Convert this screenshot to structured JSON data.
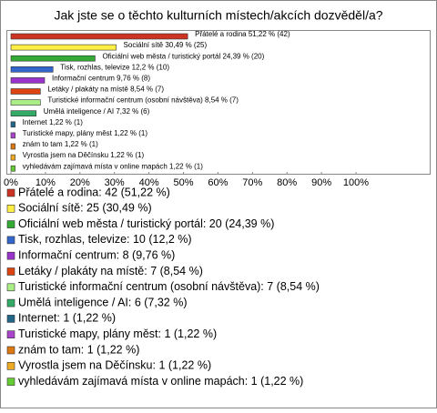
{
  "chart_data": {
    "type": "hbar",
    "title": "Jak jste se o těchto kulturních místech/akcích dozvěděl/a?",
    "values": [
      51.22,
      30.49,
      24.39,
      12.2,
      9.76,
      8.54,
      8.54,
      7.32,
      1.22,
      1.22,
      1.22,
      1.22,
      1.22
    ],
    "value_labels": [
      "Přátelé a rodina 51,22 % (42)",
      "Sociální sítě 30,49 % (25)",
      "Oficiální web města / turistický portál 24,39 % (20)",
      "Tisk, rozhlas, televize 12,2 % (10)",
      "Informační centrum 9,76 % (8)",
      "Letáky / plakáty na místě 8,54 % (7)",
      "Turistické informační centrum (osobní návštěva) 8,54 % (7)",
      "Umělá inteligence / AI 7,32 % (6)",
      "Internet 1,22 % (1)",
      "Turistické mapy, plány měst 1,22 % (1)",
      "znám to tam 1,22 % (1)",
      "Vyrostla jsem na Děčínsku 1,22 % (1)",
      "vyhledávám zajímavá místa v online mapách 1,22 % (1)"
    ],
    "legend_labels": [
      "Přátelé a rodina: 42 (51,22 %)",
      "Sociální sítě: 25 (30,49 %)",
      "Oficiální web města / turistický portál: 20 (24,39 %)",
      "Tisk, rozhlas, televize: 10 (12,2 %)",
      "Informační centrum: 8 (9,76 %)",
      "Letáky / plakáty na místě: 7 (8,54 %)",
      "Turistické informační centrum (osobní návštěva): 7 (8,54 %)",
      "Umělá inteligence / AI: 6 (7,32 %)",
      "Internet: 1 (1,22 %)",
      "Turistické mapy, plány měst: 1 (1,22 %)",
      "znám to tam: 1 (1,22 %)",
      "Vyrostla jsem na Děčínsku: 1 (1,22 %)",
      "vyhledávám zajímavá místa v online mapách: 1 (1,22 %)"
    ],
    "colors": [
      "#cc3322",
      "#ffee44",
      "#33aa33",
      "#3366cc",
      "#9933cc",
      "#dd4411",
      "#aaee88",
      "#33aa66",
      "#226688",
      "#aa44cc",
      "#dd7711",
      "#eeaa22",
      "#66cc33"
    ],
    "xlim": [
      0,
      100
    ],
    "xticks": [
      {
        "value": 0,
        "label": "0%"
      },
      {
        "value": 10,
        "label": "10%"
      },
      {
        "value": 20,
        "label": "20%"
      },
      {
        "value": 30,
        "label": "30%"
      },
      {
        "value": 40,
        "label": "40%"
      },
      {
        "value": 50,
        "label": "50%"
      },
      {
        "value": 60,
        "label": "60%"
      },
      {
        "value": 70,
        "label": "70%"
      },
      {
        "value": 80,
        "label": "80%"
      },
      {
        "value": 90,
        "label": "90%"
      },
      {
        "value": 100,
        "label": "100%"
      }
    ]
  }
}
